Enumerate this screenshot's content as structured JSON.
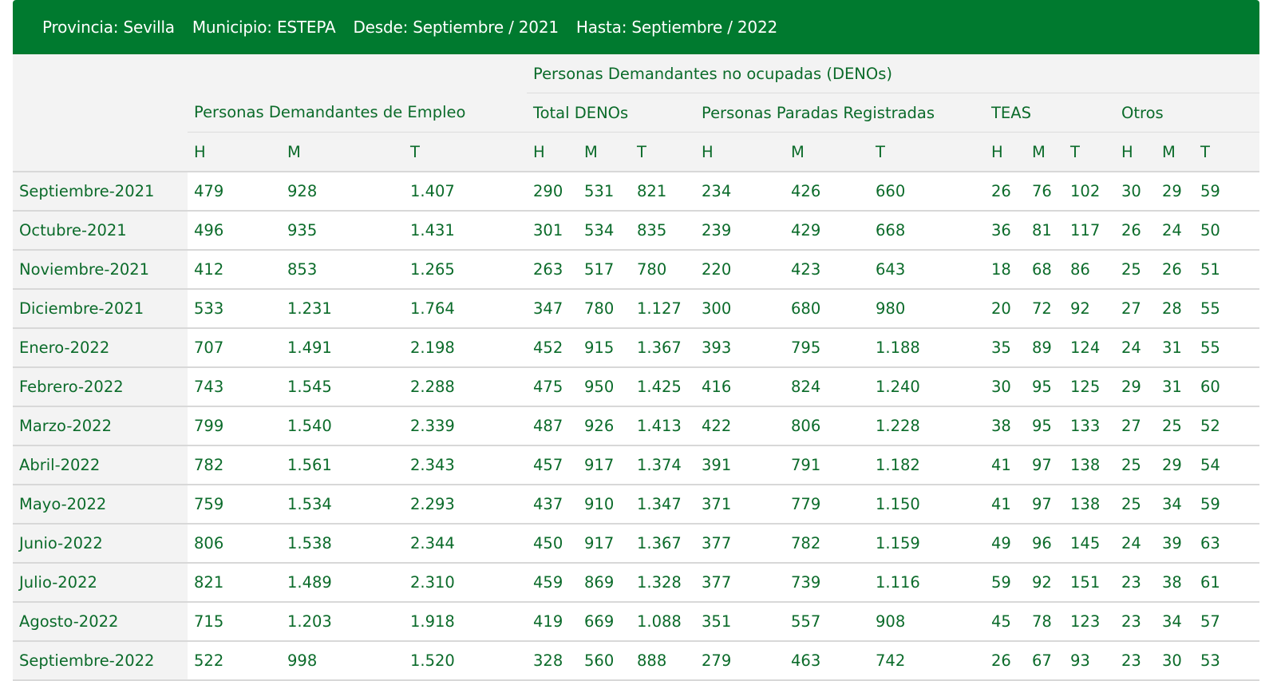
{
  "filter": {
    "provincia": "Provincia: Sevilla",
    "municipio": "Municipio: ESTEPA",
    "desde": "Desde: Septiembre / 2021",
    "hasta": "Hasta: Septiembre / 2022"
  },
  "headers": {
    "group_denos": "Personas Demandantes no ocupadas (DENOs)",
    "demandantes": "Personas Demandantes de Empleo",
    "total_denos": "Total DENOs",
    "paradas": "Personas Paradas Registradas",
    "teas": "TEAS",
    "otros": "Otros",
    "sub": [
      "H",
      "M",
      "T",
      "H",
      "M",
      "T",
      "H",
      "M",
      "T",
      "H",
      "M",
      "T",
      "H",
      "M",
      "T"
    ]
  },
  "rows": [
    {
      "month": "Septiembre-2021",
      "v": [
        "479",
        "928",
        "1.407",
        "290",
        "531",
        "821",
        "234",
        "426",
        "660",
        "26",
        "76",
        "102",
        "30",
        "29",
        "59"
      ]
    },
    {
      "month": "Octubre-2021",
      "v": [
        "496",
        "935",
        "1.431",
        "301",
        "534",
        "835",
        "239",
        "429",
        "668",
        "36",
        "81",
        "117",
        "26",
        "24",
        "50"
      ]
    },
    {
      "month": "Noviembre-2021",
      "v": [
        "412",
        "853",
        "1.265",
        "263",
        "517",
        "780",
        "220",
        "423",
        "643",
        "18",
        "68",
        "86",
        "25",
        "26",
        "51"
      ]
    },
    {
      "month": "Diciembre-2021",
      "v": [
        "533",
        "1.231",
        "1.764",
        "347",
        "780",
        "1.127",
        "300",
        "680",
        "980",
        "20",
        "72",
        "92",
        "27",
        "28",
        "55"
      ]
    },
    {
      "month": "Enero-2022",
      "v": [
        "707",
        "1.491",
        "2.198",
        "452",
        "915",
        "1.367",
        "393",
        "795",
        "1.188",
        "35",
        "89",
        "124",
        "24",
        "31",
        "55"
      ]
    },
    {
      "month": "Febrero-2022",
      "v": [
        "743",
        "1.545",
        "2.288",
        "475",
        "950",
        "1.425",
        "416",
        "824",
        "1.240",
        "30",
        "95",
        "125",
        "29",
        "31",
        "60"
      ]
    },
    {
      "month": "Marzo-2022",
      "v": [
        "799",
        "1.540",
        "2.339",
        "487",
        "926",
        "1.413",
        "422",
        "806",
        "1.228",
        "38",
        "95",
        "133",
        "27",
        "25",
        "52"
      ]
    },
    {
      "month": "Abril-2022",
      "v": [
        "782",
        "1.561",
        "2.343",
        "457",
        "917",
        "1.374",
        "391",
        "791",
        "1.182",
        "41",
        "97",
        "138",
        "25",
        "29",
        "54"
      ]
    },
    {
      "month": "Mayo-2022",
      "v": [
        "759",
        "1.534",
        "2.293",
        "437",
        "910",
        "1.347",
        "371",
        "779",
        "1.150",
        "41",
        "97",
        "138",
        "25",
        "34",
        "59"
      ]
    },
    {
      "month": "Junio-2022",
      "v": [
        "806",
        "1.538",
        "2.344",
        "450",
        "917",
        "1.367",
        "377",
        "782",
        "1.159",
        "49",
        "96",
        "145",
        "24",
        "39",
        "63"
      ]
    },
    {
      "month": "Julio-2022",
      "v": [
        "821",
        "1.489",
        "2.310",
        "459",
        "869",
        "1.328",
        "377",
        "739",
        "1.116",
        "59",
        "92",
        "151",
        "23",
        "38",
        "61"
      ]
    },
    {
      "month": "Agosto-2022",
      "v": [
        "715",
        "1.203",
        "1.918",
        "419",
        "669",
        "1.088",
        "351",
        "557",
        "908",
        "45",
        "78",
        "123",
        "23",
        "34",
        "57"
      ]
    },
    {
      "month": "Septiembre-2022",
      "v": [
        "522",
        "998",
        "1.520",
        "328",
        "560",
        "888",
        "279",
        "463",
        "742",
        "26",
        "67",
        "93",
        "23",
        "30",
        "53"
      ]
    }
  ]
}
